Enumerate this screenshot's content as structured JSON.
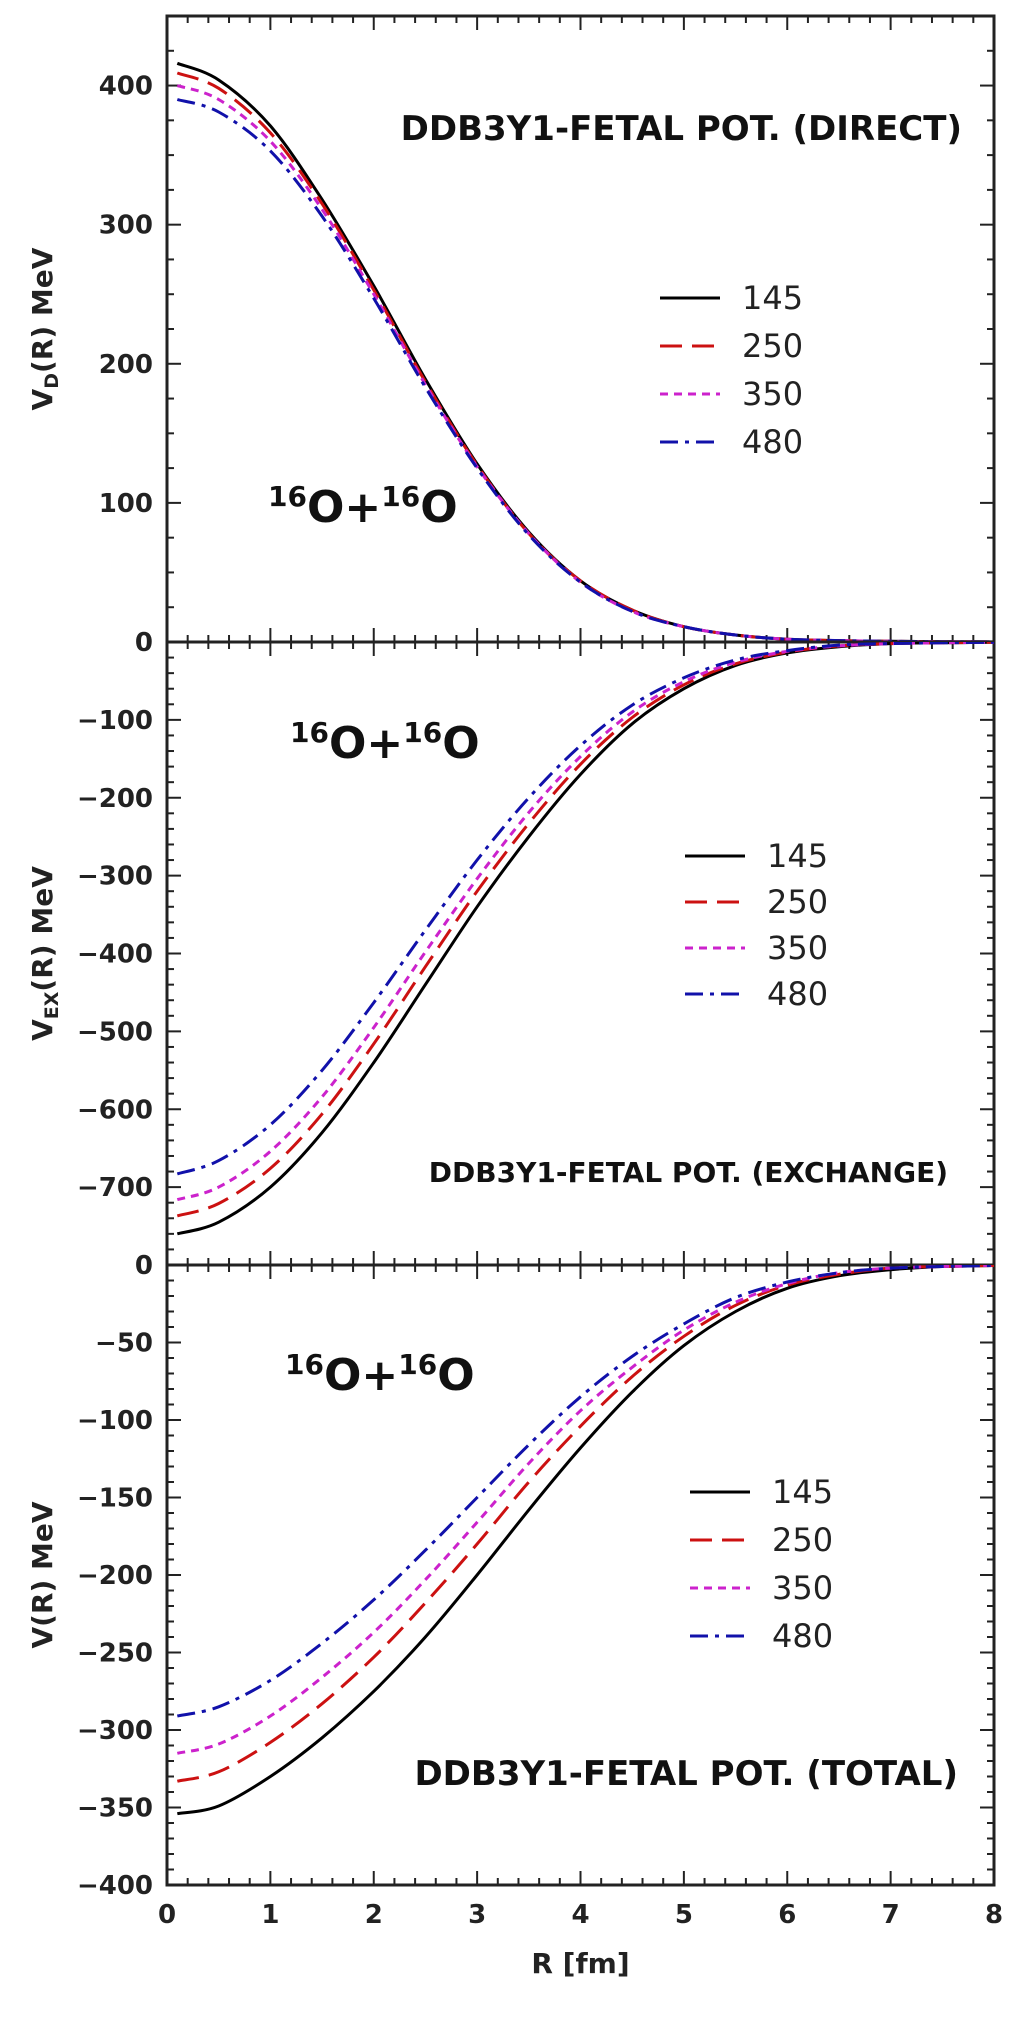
{
  "chart_data": [
    {
      "type": "line",
      "title": "DDB3Y1-FETAL POT. (DIRECT)",
      "annotation": {
        "base": "O+",
        "sup1": "16",
        "sup2": "16",
        "base2": "O"
      },
      "ylabel": {
        "main": "V",
        "sub": "D",
        "rest": "(R) MeV"
      },
      "xlabel": "R [fm]",
      "xlim": [
        0,
        8
      ],
      "ylim": [
        0,
        450
      ],
      "yticks": [
        100,
        200,
        300,
        400
      ],
      "ytick_labels": [
        "100",
        "200",
        "300",
        "400"
      ],
      "x": [
        0.1,
        0.5,
        1.0,
        1.5,
        2.0,
        2.5,
        3.0,
        3.5,
        4.0,
        4.5,
        5.0,
        5.5,
        6.0,
        6.5,
        7.0,
        7.5,
        8.0
      ],
      "series": [
        {
          "name": "145",
          "values": [
            416,
            404,
            371,
            318,
            256,
            189,
            128,
            79,
            44,
            23,
            11,
            5,
            2,
            1,
            0.5,
            0.2,
            0.1
          ]
        },
        {
          "name": "250",
          "values": [
            409,
            398,
            366,
            315,
            253,
            187,
            127,
            78,
            44,
            23,
            11,
            5,
            2,
            1,
            0.5,
            0.2,
            0.1
          ]
        },
        {
          "name": "350",
          "values": [
            400,
            390,
            360,
            311,
            250,
            185,
            126,
            78,
            43,
            22,
            11,
            5,
            2,
            1,
            0.5,
            0.2,
            0.1
          ]
        },
        {
          "name": "480",
          "values": [
            390,
            381,
            353,
            306,
            247,
            183,
            125,
            77,
            43,
            22,
            11,
            5,
            2,
            1,
            0.5,
            0.2,
            0.1
          ]
        }
      ]
    },
    {
      "type": "line",
      "title": "DDB3Y1-FETAL POT. (EXCHANGE)",
      "annotation": {
        "base": "O+",
        "sup1": "16",
        "sup2": "16",
        "base2": "O"
      },
      "ylabel": {
        "main": "V",
        "sub": "EX",
        "rest": "(R) MeV"
      },
      "xlabel": "R [fm]",
      "xlim": [
        0,
        8
      ],
      "ylim": [
        -800,
        0
      ],
      "yticks": [
        0,
        -100,
        -200,
        -300,
        -400,
        -500,
        -600,
        -700
      ],
      "ytick_labels": [
        "0",
        "−100",
        "−200",
        "−300",
        "−400",
        "−500",
        "−600",
        "−700"
      ],
      "x": [
        0.1,
        0.5,
        1.0,
        1.5,
        2.0,
        2.5,
        3.0,
        3.5,
        4.0,
        4.5,
        5.0,
        5.5,
        6.0,
        6.5,
        7.0,
        7.5,
        8.0
      ],
      "series": [
        {
          "name": "145",
          "values": [
            -760,
            -745,
            -700,
            -630,
            -540,
            -440,
            -340,
            -250,
            -170,
            -105,
            -60,
            -30,
            -14,
            -6,
            -2,
            -1,
            -0.3
          ]
        },
        {
          "name": "250",
          "values": [
            -737,
            -721,
            -676,
            -606,
            -516,
            -417,
            -320,
            -233,
            -157,
            -97,
            -55,
            -28,
            -13,
            -5,
            -2,
            -1,
            -0.3
          ]
        },
        {
          "name": "350",
          "values": [
            -716,
            -700,
            -654,
            -584,
            -495,
            -398,
            -304,
            -219,
            -147,
            -90,
            -51,
            -26,
            -12,
            -5,
            -2,
            -1,
            -0.3
          ]
        },
        {
          "name": "480",
          "values": [
            -683,
            -666,
            -620,
            -550,
            -463,
            -370,
            -280,
            -200,
            -133,
            -81,
            -46,
            -23,
            -11,
            -4,
            -2,
            -1,
            -0.3
          ]
        }
      ]
    },
    {
      "type": "line",
      "title": "DDB3Y1-FETAL POT. (TOTAL)",
      "annotation": {
        "base": "O+",
        "sup1": "16",
        "sup2": "16",
        "base2": "O"
      },
      "ylabel": {
        "main": "V(R) MeV",
        "sub": "",
        "rest": ""
      },
      "xlabel": "R [fm]",
      "xlim": [
        0,
        8
      ],
      "ylim": [
        -400,
        0
      ],
      "yticks": [
        0,
        -50,
        -100,
        -150,
        -200,
        -250,
        -300,
        -350,
        -400
      ],
      "ytick_labels": [
        "0",
        "−50",
        "−100",
        "−150",
        "−200",
        "−250",
        "−300",
        "−350",
        "−400"
      ],
      "xticks": [
        0,
        1,
        2,
        3,
        4,
        5,
        6,
        7,
        8
      ],
      "xtick_labels": [
        "0",
        "1",
        "2",
        "3",
        "4",
        "5",
        "6",
        "7",
        "8"
      ],
      "x": [
        0.1,
        0.5,
        1.0,
        1.5,
        2.0,
        2.5,
        3.0,
        3.5,
        4.0,
        4.5,
        5.0,
        5.5,
        6.0,
        6.5,
        7.0,
        7.5,
        8.0
      ],
      "series": [
        {
          "name": "145",
          "values": [
            -354,
            -349,
            -330,
            -305,
            -275,
            -240,
            -200,
            -158,
            -118,
            -82,
            -52,
            -30,
            -15,
            -7,
            -3,
            -1,
            -0.3
          ]
        },
        {
          "name": "250",
          "values": [
            -333,
            -327,
            -308,
            -283,
            -253,
            -218,
            -180,
            -140,
            -104,
            -72,
            -46,
            -26,
            -13,
            -6,
            -2,
            -1,
            -0.3
          ]
        },
        {
          "name": "350",
          "values": [
            -315,
            -309,
            -291,
            -266,
            -237,
            -203,
            -166,
            -128,
            -94,
            -66,
            -42,
            -24,
            -12,
            -5,
            -2,
            -1,
            -0.3
          ]
        },
        {
          "name": "480",
          "values": [
            -291,
            -285,
            -268,
            -244,
            -216,
            -184,
            -150,
            -116,
            -85,
            -59,
            -38,
            -21,
            -11,
            -5,
            -2,
            -1,
            -0.3
          ]
        }
      ]
    }
  ],
  "legend": [
    {
      "label": "145",
      "color": "#000000",
      "dash": "solid"
    },
    {
      "label": "250",
      "color": "#cc1111",
      "dash": "long-dash"
    },
    {
      "label": "350",
      "color": "#cc22cc",
      "dash": "short-dash"
    },
    {
      "label": "480",
      "color": "#1111aa",
      "dash": "dash-dot"
    }
  ]
}
